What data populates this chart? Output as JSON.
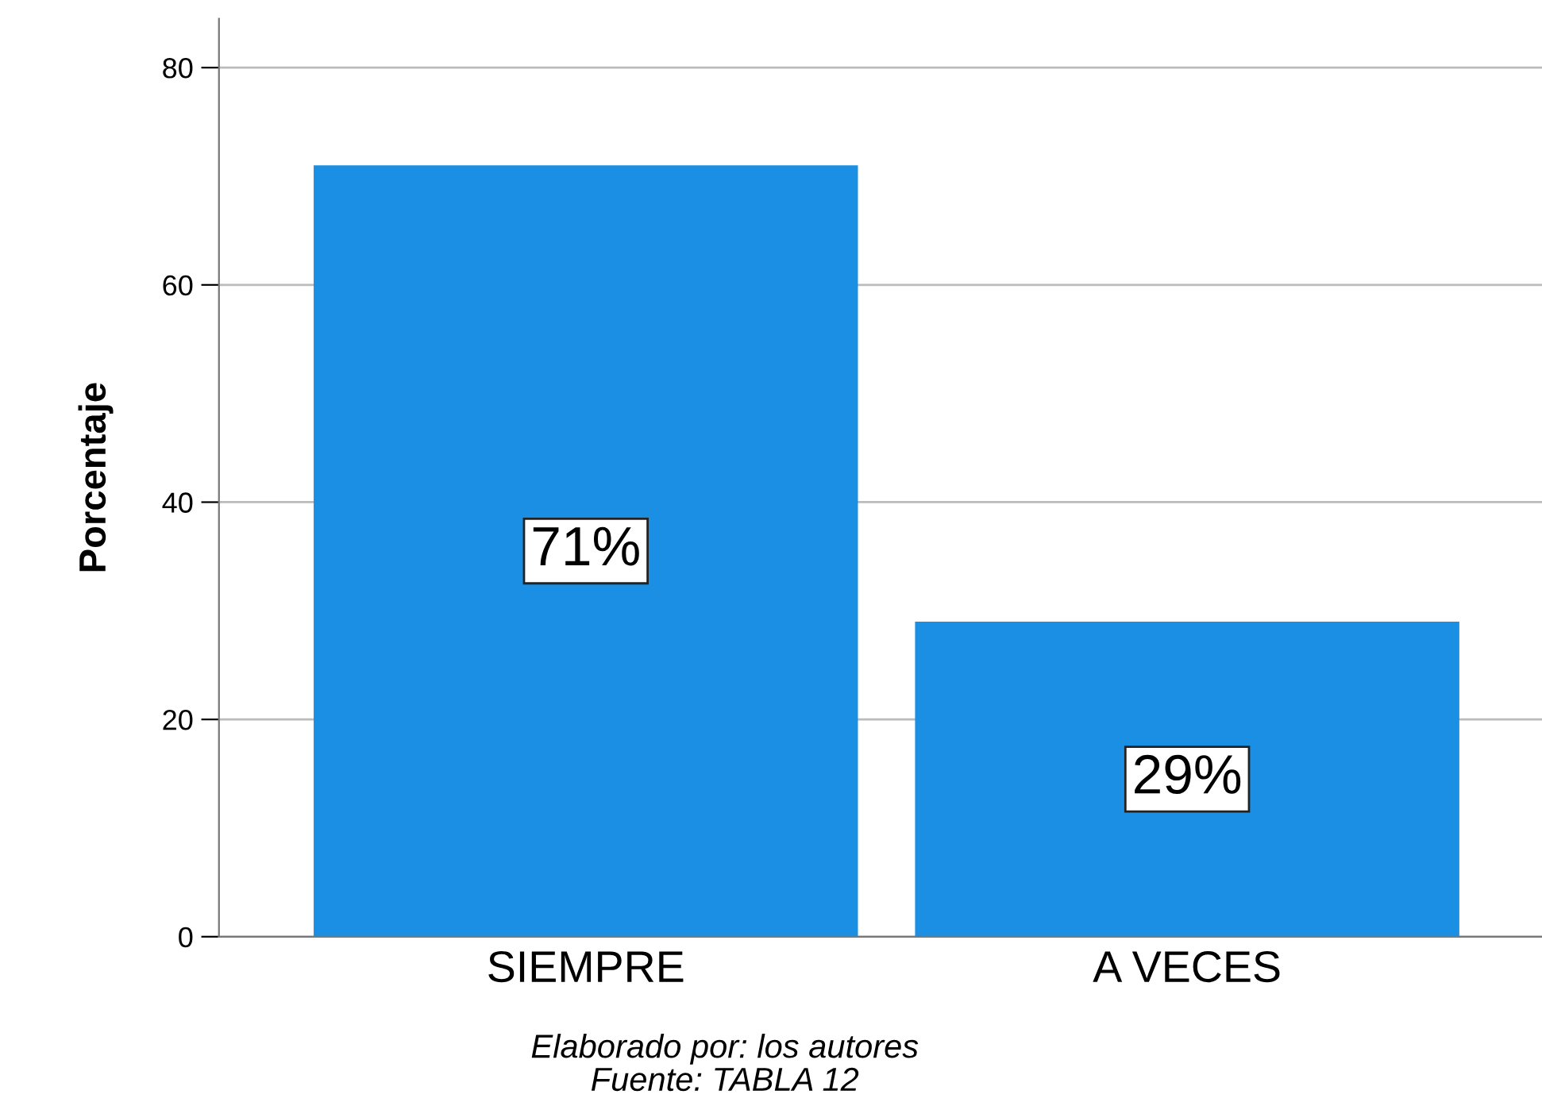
{
  "chart_data": {
    "type": "bar",
    "ylabel": "Porcentaje",
    "categories": [
      "SIEMPRE",
      "A VECES"
    ],
    "values": [
      71,
      29
    ],
    "value_labels": [
      "71%",
      "29%"
    ],
    "color": "#1a8fe3",
    "ylim": [
      0,
      84.5
    ],
    "yticks": [
      0,
      20,
      40,
      60,
      80
    ],
    "grid": "y",
    "legend": false,
    "annotations": [
      "Elaborado por: los autores",
      "Fuente: TABLA 12"
    ]
  }
}
